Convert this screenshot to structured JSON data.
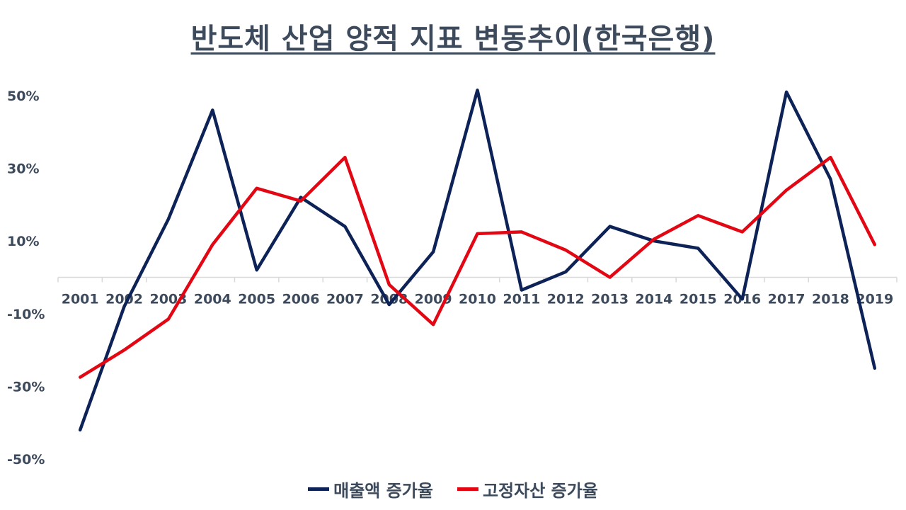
{
  "chart_data": {
    "type": "line",
    "title": "반도체 산업 양적 지표 변동추이(한국은행)",
    "x": [
      "2001",
      "2002",
      "2003",
      "2004",
      "2005",
      "2006",
      "2007",
      "2008",
      "2009",
      "2010",
      "2011",
      "2012",
      "2013",
      "2014",
      "2015",
      "2016",
      "2017",
      "2018",
      "2019"
    ],
    "ylim": [
      -50,
      50
    ],
    "yticks": [
      -50,
      -30,
      -10,
      10,
      30,
      50
    ],
    "ytick_labels": [
      "-50%",
      "-30%",
      "-10%",
      "10%",
      "30%",
      "50%"
    ],
    "grid": false,
    "legend_position": "bottom",
    "series": [
      {
        "name": "매출액 증가율",
        "color": "#0d2358",
        "values": [
          -42,
          -8,
          16,
          46,
          2,
          22,
          14,
          -7.5,
          7,
          51.5,
          -3.5,
          1.5,
          14,
          10,
          8,
          -6,
          51,
          27,
          -25
        ]
      },
      {
        "name": "고정자산 증가율",
        "color": "#e30613",
        "values": [
          -27.5,
          -20,
          -11.5,
          9,
          24.5,
          21,
          33,
          -2,
          -13,
          12,
          12.5,
          7.5,
          0,
          10.5,
          17,
          12.5,
          24,
          33,
          9
        ]
      }
    ]
  }
}
